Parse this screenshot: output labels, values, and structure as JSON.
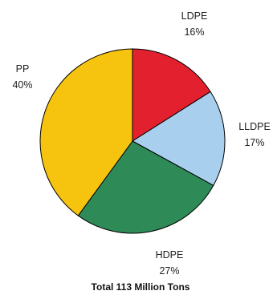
{
  "chart_data": {
    "type": "pie",
    "title": "",
    "caption": "Total 113 Million Tons",
    "slices": [
      {
        "label": "LDPE",
        "value": 16,
        "value_label": "16%",
        "color": "#e3202d"
      },
      {
        "label": "LLDPE",
        "value": 17,
        "value_label": "17%",
        "color": "#a9cfee"
      },
      {
        "label": "HDPE",
        "value": 27,
        "value_label": "27%",
        "color": "#2e8b57"
      },
      {
        "label": "PP",
        "value": 40,
        "value_label": "40%",
        "color": "#f6c30f"
      }
    ],
    "start": "12 o'clock",
    "direction": "clockwise",
    "legend": "none",
    "outline_color": "#000000"
  }
}
